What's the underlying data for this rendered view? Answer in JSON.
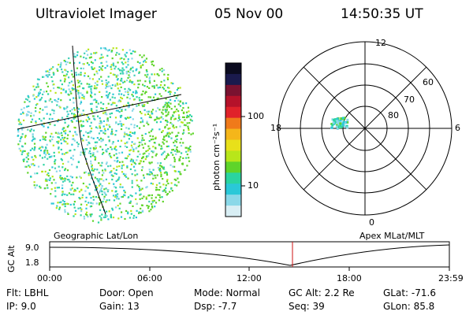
{
  "header": {
    "instrument": "Ultraviolet Imager",
    "date": "05 Nov 00",
    "time": "14:50:35 UT"
  },
  "colorbar": {
    "unit_label": "photon cm⁻²s⁻¹",
    "ticks": [
      "100",
      "10"
    ],
    "colors": [
      "#0b0b1f",
      "#1a1a4d",
      "#7a1230",
      "#b5122a",
      "#e0222a",
      "#f07a1a",
      "#f5b61a",
      "#e8e01a",
      "#b8e61a",
      "#5fd42a",
      "#2ad4a0",
      "#2ac8d8",
      "#8ad8e8",
      "#d8eef4"
    ]
  },
  "left_panel": {
    "caption": "Geographic Lat/Lon"
  },
  "polar_plot": {
    "caption": "Apex MLat/MLT",
    "mlt_labels": {
      "top": "12",
      "right": "6",
      "bottom": "0",
      "left": "18"
    },
    "lat_labels": [
      "60",
      "70",
      "80"
    ]
  },
  "timeline": {
    "axis_label": "GC Alt",
    "y_ticks": [
      "9.0",
      "1.8"
    ],
    "x_ticks": [
      "00:00",
      "06:00",
      "12:00",
      "18:00",
      "23:59"
    ],
    "marker_time": "14:50",
    "marker_color": "#cc1111"
  },
  "info": {
    "col1": [
      "Flt: LBHL",
      "IP:  9.0"
    ],
    "col2": [
      "Door: Open",
      "Gain: 13"
    ],
    "col3": [
      "Mode: Normal",
      "Dsp:    -7.7"
    ],
    "col4": [
      "GC Alt: 2.2 Re",
      "Seq: 39"
    ],
    "col5": [
      "GLat: -71.6",
      "GLon:  85.8"
    ]
  }
}
